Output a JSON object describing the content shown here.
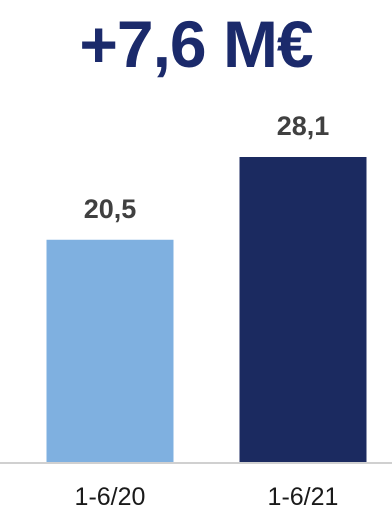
{
  "headline": "+7,6 M€",
  "colors": {
    "headline": "#1b2a6b",
    "bar_light": "#7fb0e0",
    "bar_dark": "#1b2a60",
    "axis": "#d0d0d0",
    "value_label": "#404040"
  },
  "chart_data": {
    "type": "bar",
    "categories": [
      "1-6/20",
      "1-6/21"
    ],
    "values": [
      20.5,
      28.1
    ],
    "value_labels": [
      "20,5",
      "28,1"
    ],
    "bar_colors": [
      "#7fb0e0",
      "#1b2a60"
    ],
    "ylim": [
      0,
      28.1
    ],
    "grid": false,
    "legend": "none"
  }
}
